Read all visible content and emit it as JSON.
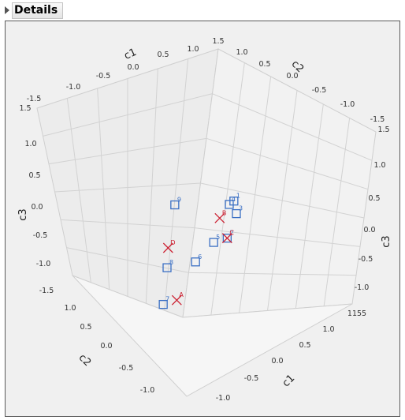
{
  "details": {
    "title": "Details"
  },
  "chart_data": {
    "type": "scatter",
    "title": "",
    "axes": {
      "c1": {
        "label": "c1",
        "range": [
          -1.5,
          1.5
        ]
      },
      "c2": {
        "label": "c2",
        "range": [
          -1.5,
          1.5
        ]
      },
      "c3": {
        "label": "c3",
        "range": [
          -1.5,
          1.5
        ]
      }
    },
    "ticks": {
      "c1_top": [
        "1.0",
        "0.5",
        "0.0",
        "-0.5",
        "-1.0",
        "-1.5"
      ],
      "c2_top": [
        "1.0",
        "0.5",
        "0.0",
        "-0.5",
        "-1.0",
        "-1.5"
      ],
      "c3_left": [
        "1.5",
        "1.0",
        "0.5",
        "0.0",
        "-0.5",
        "-1.0",
        "-1.5"
      ],
      "c3_right": [
        "1.5",
        "1.0",
        "0.5",
        "0.0",
        "-0.5",
        "-1.0"
      ],
      "c2_bottom": [
        "1.0",
        "0.5",
        "0.0",
        "-0.5",
        "-1.0"
      ],
      "c1_bottom": [
        "1.0",
        "0.5",
        "0.0",
        "-0.5",
        "-1.0"
      ],
      "top_corner": "1.5",
      "corner_mark": "1155"
    },
    "grid": true,
    "series": [
      {
        "marker": "square",
        "color": "#3a6fc4",
        "points": [
          {
            "label": "9",
            "c1": -1.3,
            "c2": -0.2,
            "c3": 0.4
          },
          {
            "label": "8",
            "c1": -0.9,
            "c2": 0.3,
            "c3": -0.5
          },
          {
            "label": "7",
            "c1": -0.2,
            "c2": 0.9,
            "c3": -0.9
          },
          {
            "label": "6",
            "c1": 0.1,
            "c2": 0.2,
            "c3": -0.3
          },
          {
            "label": "5",
            "c1": 0.4,
            "c2": -0.1,
            "c3": 0.0
          },
          {
            "label": "4",
            "c1": 0.6,
            "c2": -0.4,
            "c3": 0.6
          },
          {
            "label": "3",
            "c1": 0.6,
            "c2": -0.6,
            "c3": 0.4
          },
          {
            "label": "2",
            "c1": 0.8,
            "c2": -0.2,
            "c3": 0.1
          },
          {
            "label": "1",
            "c1": 0.5,
            "c2": -0.6,
            "c3": 0.6
          }
        ]
      },
      {
        "marker": "x",
        "color": "#cc2233",
        "points": [
          {
            "label": "D",
            "c1": -1.0,
            "c2": 0.2,
            "c3": -0.2
          },
          {
            "label": "A",
            "c1": 0.2,
            "c2": 0.8,
            "c3": -0.8
          },
          {
            "label": "C",
            "c1": 0.8,
            "c2": -0.2,
            "c3": 0.1
          },
          {
            "label": "B",
            "c1": 0.5,
            "c2": -0.2,
            "c3": 0.4
          }
        ]
      }
    ]
  }
}
